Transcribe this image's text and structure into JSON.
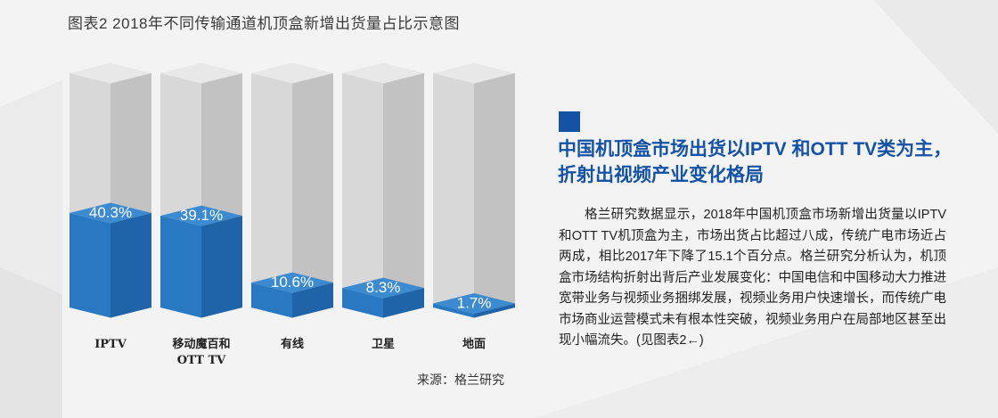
{
  "figure_title": "图表2  2018年不同传输通道机顶盒新增出货量占比示意图",
  "source": "来源：格兰研究",
  "headline": "中国机顶盒市场出货以IPTV 和OTT TV类为主，折射出视频产业变化格局",
  "body": "格兰研究数据显示，2018年中国机顶盒市场新增出货量以IPTV和OTT TV机顶盒为主，市场出货占比超过八成，传统广电市场近占两成，相比2017年下降了15.1个百分点。格兰研究分析认为，机顶盒市场结构折射出背后产业发展变化：中国电信和中国移动大力推进宽带业务与视频业务捆绑发展，视频业务用户快速增长，而传统广电市场商业运营模式未有根本性突破，视频业务用户在局部地区甚至出现小幅流失。(见图表2←)",
  "colors": {
    "accent": "#1452a6",
    "bar_front": "#2878c2",
    "bar_side": "#1f63a8",
    "bar_top": "#3c8ad0",
    "empty_front": "#d8d8d9",
    "empty_side": "#c2c2c3",
    "empty_top": "#e8e8e9"
  },
  "chart_data": {
    "type": "bar",
    "categories": [
      "IPTV",
      "移动魔百和\nOTT TV",
      "有线",
      "卫星",
      "地面"
    ],
    "values": [
      40.3,
      39.1,
      10.6,
      8.3,
      1.7
    ],
    "data_labels": [
      "40.3%",
      "39.1%",
      "10.6%",
      "8.3%",
      "1.7%"
    ],
    "ylim": [
      0,
      100
    ],
    "unit": "%",
    "style": "3d-column-with-full-background"
  }
}
